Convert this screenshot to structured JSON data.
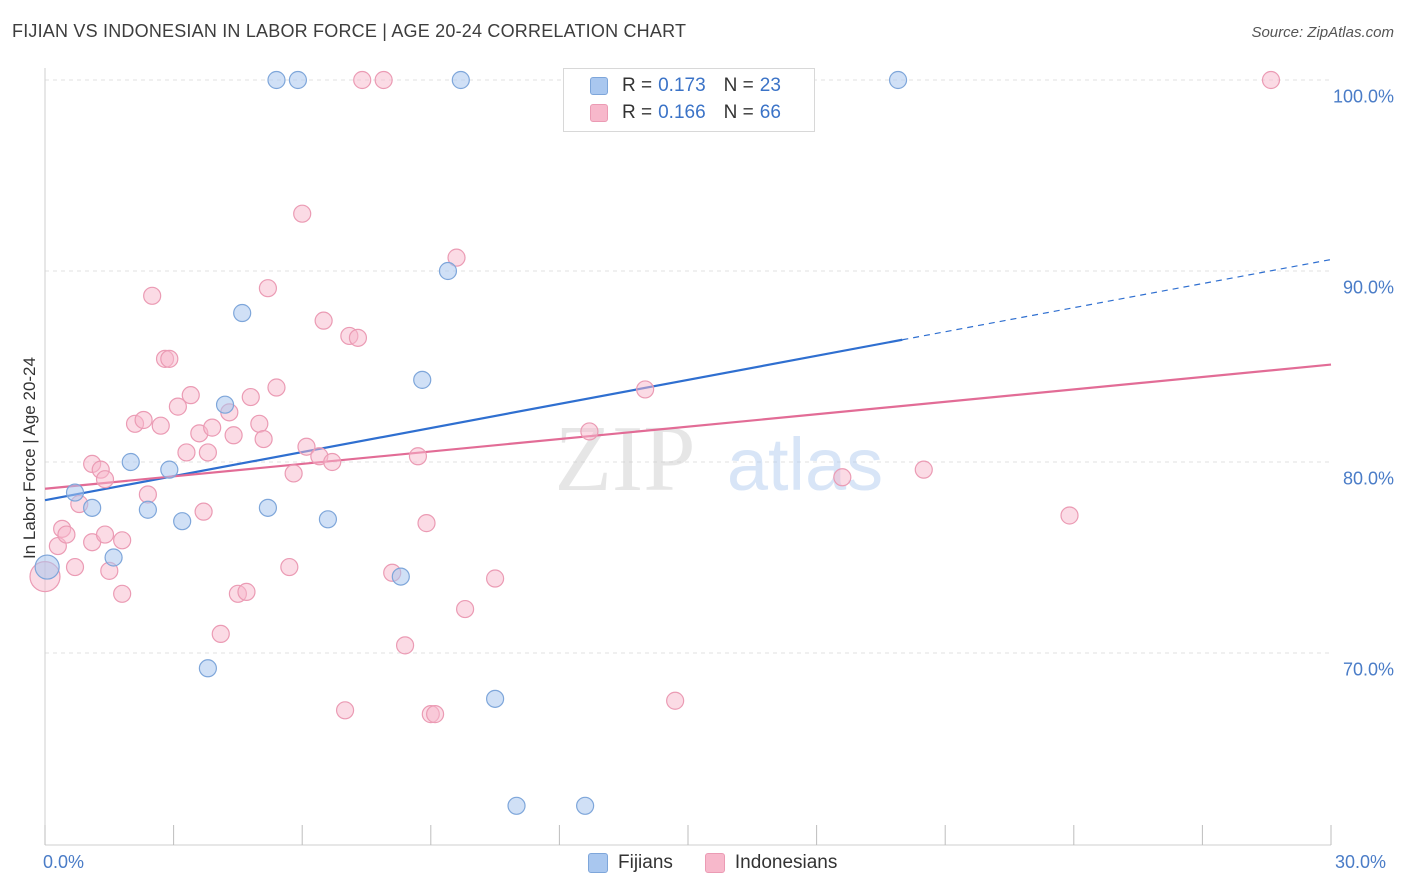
{
  "title": "FIJIAN VS INDONESIAN IN LABOR FORCE | AGE 20-24 CORRELATION CHART",
  "source": "Source: ZipAtlas.com",
  "watermark": {
    "zip": "ZIP",
    "atlas": "atlas"
  },
  "legend": {
    "fijians": {
      "r_label": "R = ",
      "r_value": "0.173",
      "n_label": "N = ",
      "n_value": "23"
    },
    "indonesians": {
      "r_label": "R = ",
      "r_value": "0.166",
      "n_label": "N = ",
      "n_value": "66"
    }
  },
  "colors": {
    "fijians_fill": "#a9c7ef",
    "fijians_stroke": "#7ea6da",
    "fijians_line": "#2f6fd0",
    "indonesians_fill": "#f7b8cb",
    "indonesians_stroke": "#eb9bb4",
    "indonesians_line": "#e26c96",
    "grid": "#e2e2e2",
    "axis_text": "#4a7cc7"
  },
  "chart_data": {
    "type": "scatter",
    "title": "FIJIAN VS INDONESIAN IN LABOR FORCE | AGE 20-24 CORRELATION CHART",
    "xlabel": "",
    "ylabel": "In Labor Force | Age 20-24",
    "xlim": [
      0,
      30
    ],
    "ylim": [
      60,
      100.8
    ],
    "x_tick_labels": [
      "0.0%",
      "30.0%"
    ],
    "y_ticks": [
      70,
      80,
      90,
      100
    ],
    "y_tick_labels": [
      "70.0%",
      "80.0%",
      "90.0%",
      "100.0%"
    ],
    "legend_placement": "top-center",
    "series": [
      {
        "name": "Fijians",
        "points": [
          [
            5.4,
            100
          ],
          [
            5.9,
            100
          ],
          [
            9.7,
            100
          ],
          [
            19.9,
            100
          ],
          [
            0.05,
            74.5
          ],
          [
            0.7,
            78.4
          ],
          [
            1.1,
            77.6
          ],
          [
            1.6,
            75.0
          ],
          [
            2.0,
            80.0
          ],
          [
            2.4,
            77.5
          ],
          [
            2.9,
            79.6
          ],
          [
            3.2,
            76.9
          ],
          [
            3.8,
            69.2
          ],
          [
            4.2,
            83.0
          ],
          [
            4.6,
            87.8
          ],
          [
            5.2,
            77.6
          ],
          [
            6.6,
            77.0
          ],
          [
            8.3,
            74.0
          ],
          [
            8.8,
            84.3
          ],
          [
            9.4,
            90.0
          ],
          [
            10.5,
            67.6
          ],
          [
            11.0,
            62.0
          ],
          [
            12.6,
            62.0
          ]
        ],
        "trend": {
          "x": [
            0,
            20.0
          ],
          "y": [
            78.0,
            86.4
          ],
          "dashed_to": [
            30,
            90.6
          ]
        }
      },
      {
        "name": "Indonesians",
        "points": [
          [
            7.4,
            100
          ],
          [
            7.9,
            100
          ],
          [
            28.6,
            100
          ],
          [
            0.0,
            74.0
          ],
          [
            0.3,
            75.6
          ],
          [
            0.4,
            76.5
          ],
          [
            0.5,
            76.2
          ],
          [
            0.7,
            74.5
          ],
          [
            0.8,
            77.8
          ],
          [
            1.1,
            75.8
          ],
          [
            1.1,
            79.9
          ],
          [
            1.3,
            79.6
          ],
          [
            1.4,
            79.1
          ],
          [
            1.4,
            76.2
          ],
          [
            1.5,
            74.3
          ],
          [
            1.8,
            75.9
          ],
          [
            1.8,
            73.1
          ],
          [
            2.1,
            82.0
          ],
          [
            2.3,
            82.2
          ],
          [
            2.4,
            78.3
          ],
          [
            2.5,
            88.7
          ],
          [
            2.7,
            81.9
          ],
          [
            2.8,
            85.4
          ],
          [
            2.9,
            85.4
          ],
          [
            3.1,
            82.9
          ],
          [
            3.3,
            80.5
          ],
          [
            3.4,
            83.5
          ],
          [
            3.6,
            81.5
          ],
          [
            3.7,
            77.4
          ],
          [
            3.8,
            80.5
          ],
          [
            3.9,
            81.8
          ],
          [
            4.1,
            71.0
          ],
          [
            4.3,
            82.6
          ],
          [
            4.4,
            81.4
          ],
          [
            4.5,
            73.1
          ],
          [
            4.7,
            73.2
          ],
          [
            4.8,
            83.4
          ],
          [
            5.0,
            82.0
          ],
          [
            5.1,
            81.2
          ],
          [
            5.2,
            89.1
          ],
          [
            5.4,
            83.9
          ],
          [
            5.7,
            74.5
          ],
          [
            5.8,
            79.4
          ],
          [
            6.0,
            93.0
          ],
          [
            6.1,
            80.8
          ],
          [
            6.4,
            80.3
          ],
          [
            6.5,
            87.4
          ],
          [
            6.7,
            80.0
          ],
          [
            7.0,
            67.0
          ],
          [
            7.1,
            86.6
          ],
          [
            7.3,
            86.5
          ],
          [
            8.1,
            74.2
          ],
          [
            8.4,
            70.4
          ],
          [
            8.7,
            80.3
          ],
          [
            8.9,
            76.8
          ],
          [
            9.0,
            66.8
          ],
          [
            9.1,
            66.8
          ],
          [
            9.6,
            90.7
          ],
          [
            9.8,
            72.3
          ],
          [
            10.5,
            73.9
          ],
          [
            12.7,
            81.6
          ],
          [
            14.0,
            83.8
          ],
          [
            14.7,
            67.5
          ],
          [
            18.6,
            79.2
          ],
          [
            20.5,
            79.6
          ],
          [
            23.9,
            77.2
          ]
        ],
        "trend": {
          "x": [
            0,
            30
          ],
          "y": [
            78.6,
            85.1
          ]
        }
      }
    ]
  }
}
